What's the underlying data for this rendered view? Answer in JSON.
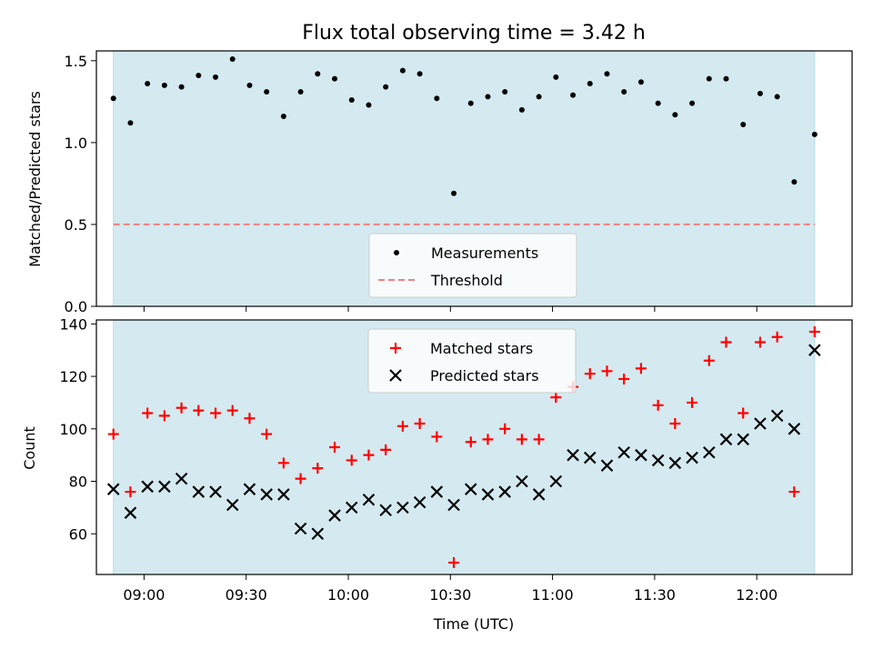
{
  "chart_data": [
    {
      "type": "scatter",
      "title": "Flux total observing time = 3.42 h",
      "xlabel": "",
      "ylabel": "Matched/Predicted stars",
      "xlim": [
        "08:46",
        "12:28"
      ],
      "ylim": [
        0,
        1.56
      ],
      "yticks": [
        "0.0",
        "0.5",
        "1.0",
        "1.5"
      ],
      "grid": false,
      "legend_placement": "lower-center",
      "observing_window": [
        "08:51",
        "12:17"
      ],
      "observing_window_color": "#d4eaf0",
      "threshold": 0.5,
      "series": [
        {
          "name": "Measurements",
          "marker": "dot",
          "color": "#000000",
          "x": [
            "08:51",
            "08:56",
            "09:01",
            "09:06",
            "09:11",
            "09:16",
            "09:21",
            "09:26",
            "09:31",
            "09:36",
            "09:41",
            "09:46",
            "09:51",
            "09:56",
            "10:01",
            "10:06",
            "10:11",
            "10:16",
            "10:21",
            "10:26",
            "10:31",
            "10:36",
            "10:41",
            "10:46",
            "10:51",
            "10:56",
            "11:01",
            "11:06",
            "11:11",
            "11:16",
            "11:21",
            "11:26",
            "11:31",
            "11:36",
            "11:41",
            "11:46",
            "11:51",
            "11:56",
            "12:01",
            "12:06",
            "12:11",
            "12:17"
          ],
          "values": [
            1.27,
            1.12,
            1.36,
            1.35,
            1.34,
            1.41,
            1.4,
            1.51,
            1.35,
            1.31,
            1.16,
            1.31,
            1.42,
            1.39,
            1.26,
            1.23,
            1.34,
            1.44,
            1.42,
            1.27,
            0.69,
            1.24,
            1.28,
            1.31,
            1.2,
            1.28,
            1.4,
            1.29,
            1.36,
            1.42,
            1.31,
            1.37,
            1.24,
            1.17,
            1.24,
            1.39,
            1.39,
            1.11,
            1.3,
            1.28,
            0.76,
            1.05
          ]
        },
        {
          "name": "Threshold",
          "marker": "dashed-line",
          "color": "#f08080",
          "x": [
            "08:51",
            "12:17"
          ],
          "values": [
            0.5,
            0.5
          ]
        }
      ]
    },
    {
      "type": "scatter",
      "title": "",
      "xlabel": "Time (UTC)",
      "ylabel": "Count",
      "xlim": [
        "08:46",
        "12:28"
      ],
      "ylim": [
        44.5,
        141.5
      ],
      "yticks": [
        "60",
        "80",
        "100",
        "120",
        "140"
      ],
      "xticks": [
        "09:00",
        "09:30",
        "10:00",
        "10:30",
        "11:00",
        "11:30",
        "12:00"
      ],
      "grid": false,
      "legend_placement": "upper-center",
      "observing_window": [
        "08:51",
        "12:17"
      ],
      "observing_window_color": "#d4eaf0",
      "series": [
        {
          "name": "Matched stars",
          "marker": "plus",
          "color": "#ff0000",
          "x": [
            "08:51",
            "08:56",
            "09:01",
            "09:06",
            "09:11",
            "09:16",
            "09:21",
            "09:26",
            "09:31",
            "09:36",
            "09:41",
            "09:46",
            "09:51",
            "09:56",
            "10:01",
            "10:06",
            "10:11",
            "10:16",
            "10:21",
            "10:26",
            "10:31",
            "10:36",
            "10:41",
            "10:46",
            "10:51",
            "10:56",
            "11:01",
            "11:06",
            "11:11",
            "11:16",
            "11:21",
            "11:26",
            "11:31",
            "11:36",
            "11:41",
            "11:46",
            "11:51",
            "11:56",
            "12:01",
            "12:06",
            "12:11",
            "12:17"
          ],
          "values": [
            98,
            76,
            106,
            105,
            108,
            107,
            106,
            107,
            104,
            98,
            87,
            81,
            85,
            93,
            88,
            90,
            92,
            101,
            102,
            97,
            49,
            95,
            96,
            100,
            96,
            96,
            112,
            116,
            121,
            122,
            119,
            123,
            109,
            102,
            110,
            126,
            133,
            106,
            133,
            135,
            76,
            137
          ]
        },
        {
          "name": "Predicted stars",
          "marker": "x",
          "color": "#000000",
          "x": [
            "08:51",
            "08:56",
            "09:01",
            "09:06",
            "09:11",
            "09:16",
            "09:21",
            "09:26",
            "09:31",
            "09:36",
            "09:41",
            "09:46",
            "09:51",
            "09:56",
            "10:01",
            "10:06",
            "10:11",
            "10:16",
            "10:21",
            "10:26",
            "10:31",
            "10:36",
            "10:41",
            "10:46",
            "10:51",
            "10:56",
            "11:01",
            "11:06",
            "11:11",
            "11:16",
            "11:21",
            "11:26",
            "11:31",
            "11:36",
            "11:41",
            "11:46",
            "11:51",
            "11:56",
            "12:01",
            "12:06",
            "12:11",
            "12:17"
          ],
          "values": [
            77,
            68,
            78,
            78,
            81,
            76,
            76,
            71,
            77,
            75,
            75,
            62,
            60,
            67,
            70,
            73,
            69,
            70,
            72,
            76,
            71,
            77,
            75,
            76,
            80,
            75,
            80,
            90,
            89,
            86,
            91,
            90,
            88,
            87,
            89,
            91,
            96,
            96,
            102,
            105,
            100,
            130
          ]
        }
      ]
    }
  ]
}
